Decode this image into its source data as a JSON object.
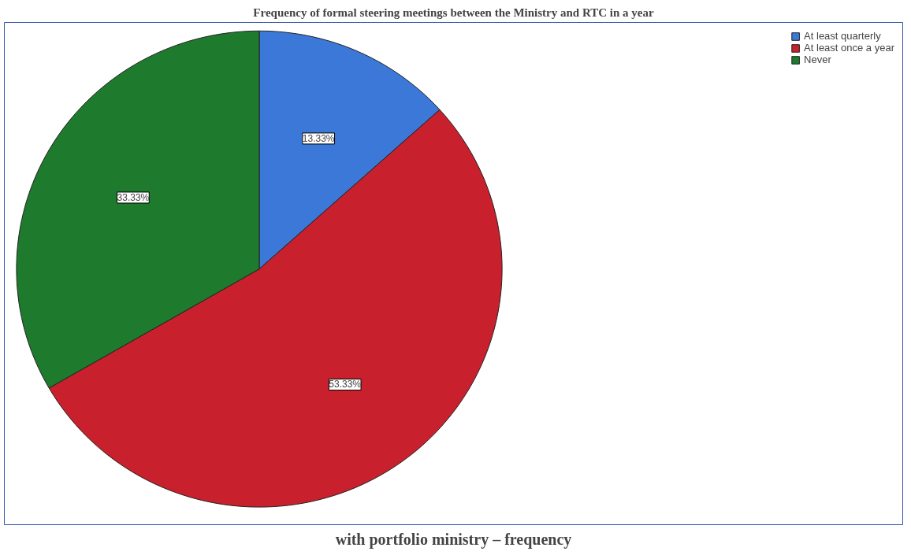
{
  "chart_data": {
    "type": "pie",
    "title": "Frequency of formal steering meetings between the Ministry and RTC in a year",
    "categories": [
      "At least quarterly",
      "At least once a year",
      "Never"
    ],
    "values": [
      13.33,
      53.33,
      33.33
    ],
    "value_labels": [
      "13.33%",
      "53.33%",
      "33.33%"
    ],
    "colors": [
      "#3b78d8",
      "#c8202c",
      "#1e7a2c"
    ],
    "legend": "top right",
    "annotations": [
      "with portfolio ministry – frequency"
    ]
  }
}
